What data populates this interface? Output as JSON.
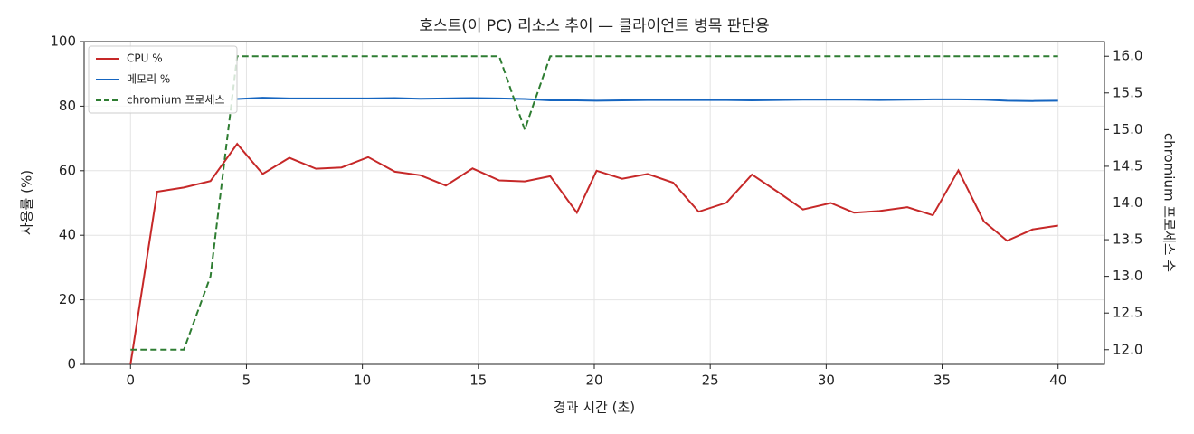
{
  "chart_data": {
    "type": "line",
    "title": "호스트(이 PC) 리소스 추이 — 클라이언트 병목 판단용",
    "x_label": "경과 시간 (초)",
    "y_label": "사용률 (%)",
    "y2_label": "chromium 프로세스 수",
    "x": [
      0,
      1.15,
      2.3,
      3.45,
      4.6,
      5.7,
      6.85,
      8.0,
      9.1,
      10.25,
      11.4,
      12.5,
      13.6,
      14.75,
      15.9,
      17.0,
      18.1,
      19.25,
      20.1,
      21.2,
      22.3,
      23.4,
      24.5,
      25.7,
      26.8,
      27.9,
      29.0,
      30.2,
      31.2,
      32.3,
      33.5,
      34.6,
      35.7,
      36.8,
      37.8,
      38.9,
      40.0
    ],
    "series": [
      {
        "name": "CPU %",
        "color": "#c62828",
        "dash": false,
        "values": [
          0,
          53.5,
          54.8,
          56.8,
          68.3,
          59,
          64,
          60.6,
          61,
          64.2,
          59.7,
          58.6,
          55.4,
          60.7,
          57,
          56.7,
          58.3,
          47,
          60,
          57.5,
          59,
          56.3,
          47.3,
          50.1,
          58.8,
          53.5,
          48,
          50,
          47,
          47.5,
          48.7,
          46.2,
          60.1,
          44.3,
          38.3,
          41.8,
          43
        ]
      },
      {
        "name": "메모리 %",
        "color": "#1565c0",
        "dash": false,
        "values": [
          null,
          null,
          null,
          null,
          82.2,
          82.6,
          82.4,
          82.4,
          82.4,
          82.4,
          82.5,
          82.3,
          82.4,
          82.5,
          82.4,
          82.2,
          81.8,
          81.8,
          81.7,
          81.8,
          81.9,
          81.9,
          81.9,
          81.9,
          81.8,
          81.9,
          82.0,
          82.0,
          82.0,
          81.9,
          82.0,
          82.1,
          82.1,
          82.0,
          81.7,
          81.6,
          81.7
        ]
      },
      {
        "name": "chromium 프로세스",
        "color": "#2e7d32",
        "dash": true,
        "axis": "y2",
        "values": [
          12,
          12,
          12,
          13,
          16,
          16,
          16,
          16,
          16,
          16,
          16,
          16,
          16,
          16,
          16,
          15,
          16,
          16,
          16,
          16,
          16,
          16,
          16,
          16,
          16,
          16,
          16,
          16,
          16,
          16,
          16,
          16,
          16,
          16,
          16,
          16,
          16
        ]
      }
    ],
    "xlim": [
      -2,
      42
    ],
    "xticks": [
      0,
      5,
      10,
      15,
      20,
      25,
      30,
      35,
      40
    ],
    "ylim": [
      0,
      100
    ],
    "yticks": [
      0,
      20,
      40,
      60,
      80,
      100
    ],
    "y2lim": [
      11.8,
      16.2
    ],
    "y2ticks": [
      {
        "value": 12,
        "label": "12.0"
      },
      12.5,
      {
        "value": 13,
        "label": "13.0"
      },
      13.5,
      {
        "value": 14,
        "label": "14.0"
      },
      14.5,
      {
        "value": 15,
        "label": "15.0"
      },
      15.5,
      {
        "value": 16,
        "label": "16.0"
      }
    ],
    "grid": true,
    "legend": "upper-left"
  }
}
